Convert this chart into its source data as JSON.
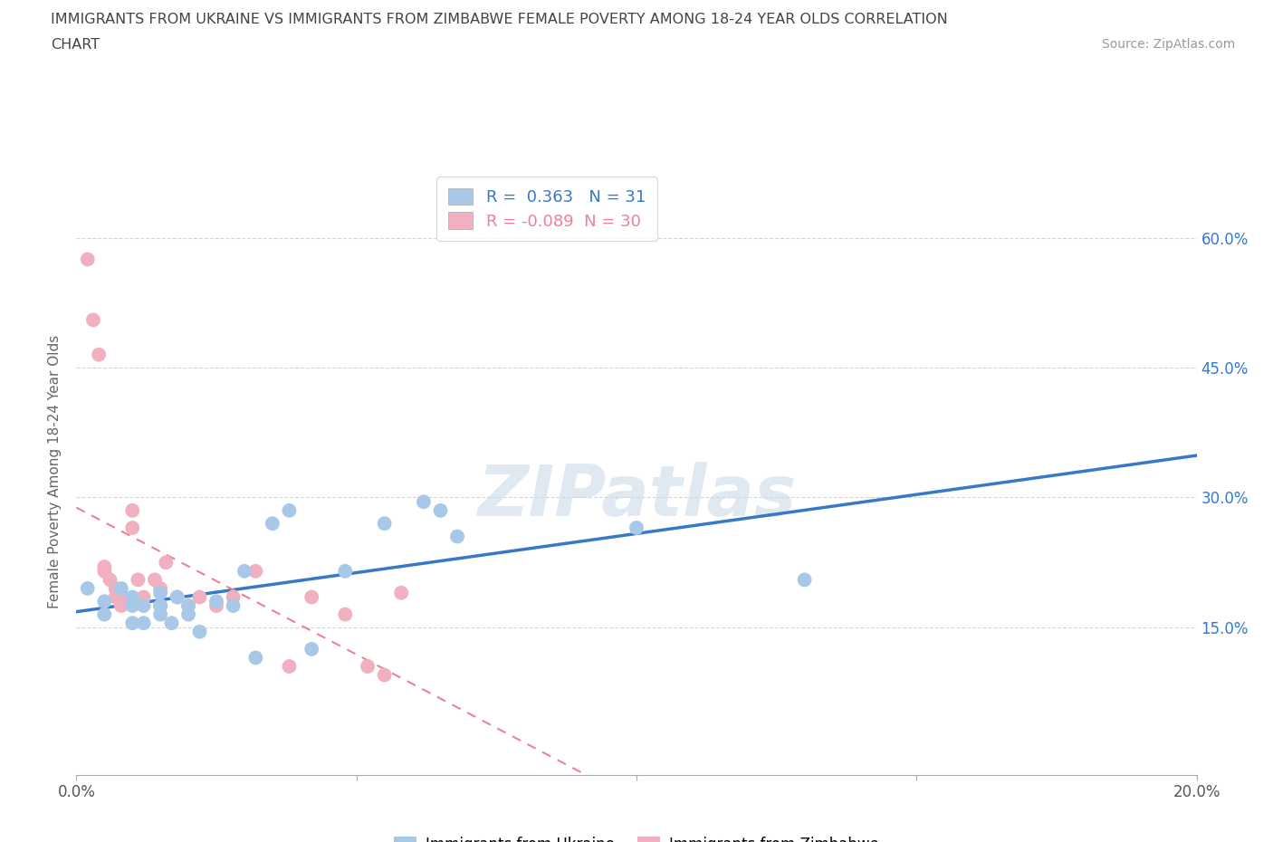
{
  "title_line1": "IMMIGRANTS FROM UKRAINE VS IMMIGRANTS FROM ZIMBABWE FEMALE POVERTY AMONG 18-24 YEAR OLDS CORRELATION",
  "title_line2": "CHART",
  "source": "Source: ZipAtlas.com",
  "ylabel": "Female Poverty Among 18-24 Year Olds",
  "xlim": [
    0.0,
    0.2
  ],
  "ylim": [
    -0.02,
    0.68
  ],
  "yticks": [
    0.0,
    0.15,
    0.3,
    0.45,
    0.6
  ],
  "right_ytick_labels": [
    "",
    "15.0%",
    "30.0%",
    "45.0%",
    "60.0%"
  ],
  "xticks": [
    0.0,
    0.05,
    0.1,
    0.15,
    0.2
  ],
  "xtick_labels": [
    "0.0%",
    "",
    "",
    "",
    "20.0%"
  ],
  "ukraine_color": "#a8c8e8",
  "zimbabwe_color": "#f0b0c0",
  "ukraine_line_color": "#3878c8",
  "zimbabwe_line_color": "#f08098",
  "R_ukraine": 0.363,
  "N_ukraine": 31,
  "R_zimbabwe": -0.089,
  "N_zimbabwe": 30,
  "watermark": "ZIPatlas",
  "ukraine_scatter_x": [
    0.002,
    0.005,
    0.005,
    0.008,
    0.01,
    0.01,
    0.01,
    0.012,
    0.012,
    0.015,
    0.015,
    0.015,
    0.017,
    0.018,
    0.02,
    0.02,
    0.022,
    0.025,
    0.028,
    0.03,
    0.032,
    0.035,
    0.038,
    0.042,
    0.048,
    0.055,
    0.062,
    0.065,
    0.068,
    0.1,
    0.13
  ],
  "ukraine_scatter_y": [
    0.195,
    0.165,
    0.18,
    0.195,
    0.155,
    0.175,
    0.185,
    0.155,
    0.175,
    0.165,
    0.175,
    0.19,
    0.155,
    0.185,
    0.165,
    0.175,
    0.145,
    0.18,
    0.175,
    0.215,
    0.115,
    0.27,
    0.285,
    0.125,
    0.215,
    0.27,
    0.295,
    0.285,
    0.255,
    0.265,
    0.205
  ],
  "zimbabwe_scatter_x": [
    0.002,
    0.003,
    0.004,
    0.005,
    0.005,
    0.006,
    0.007,
    0.007,
    0.008,
    0.008,
    0.01,
    0.01,
    0.011,
    0.012,
    0.014,
    0.015,
    0.015,
    0.016,
    0.018,
    0.02,
    0.022,
    0.025,
    0.028,
    0.032,
    0.038,
    0.042,
    0.048,
    0.052,
    0.055,
    0.058
  ],
  "zimbabwe_scatter_y": [
    0.575,
    0.505,
    0.465,
    0.215,
    0.22,
    0.205,
    0.195,
    0.185,
    0.185,
    0.175,
    0.285,
    0.265,
    0.205,
    0.185,
    0.205,
    0.195,
    0.175,
    0.225,
    0.185,
    0.175,
    0.185,
    0.175,
    0.185,
    0.215,
    0.105,
    0.185,
    0.165,
    0.105,
    0.095,
    0.19
  ],
  "background_color": "#ffffff",
  "grid_color": "#cccccc"
}
